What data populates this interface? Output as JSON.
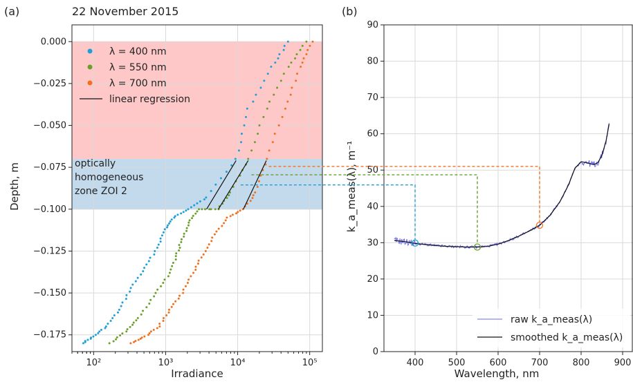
{
  "panel_a": {
    "label": "(a)",
    "title": "22 November 2015",
    "xlabel": "Irradiance",
    "ylabel": "Depth, m",
    "zone_label_lines": [
      "optically",
      "homogeneous",
      "zone ZOI 2"
    ],
    "x_tick_labels": [
      "10²",
      "10³",
      "10⁴",
      "10⁵"
    ],
    "y_tick_labels": [
      "0.000",
      "−0.025",
      "−0.050",
      "−0.075",
      "−0.100",
      "−0.125",
      "−0.150",
      "−0.175"
    ],
    "legend": [
      "λ = 400 nm",
      "λ = 550 nm",
      "λ = 700 nm",
      "linear regression"
    ]
  },
  "panel_b": {
    "label": "(b)",
    "xlabel": "Wavelength, nm",
    "ylabel": "k_a_meas(λ), m⁻¹",
    "x_tick_labels": [
      "400",
      "500",
      "600",
      "700",
      "800",
      "900"
    ],
    "y_tick_labels": [
      "0",
      "10",
      "20",
      "30",
      "40",
      "50",
      "60",
      "70",
      "80",
      "90"
    ],
    "legend": [
      "raw k_a_meas(λ)",
      "smoothed k_a_meas(λ)"
    ]
  },
  "colors": {
    "blue": "#1f9fd8",
    "green": "#6c9e2c",
    "orange": "#f07020",
    "red_zone": "#ffc8c8",
    "blue_zone": "#c3d9ec",
    "raw_line": "#6a6aee",
    "smooth_line": "#111111"
  },
  "chart_data": [
    {
      "type": "scatter",
      "xscale": "log",
      "xlim": [
        50,
        150000
      ],
      "ylim": [
        -0.185,
        0.01
      ],
      "grid": true,
      "legend_position": "top-left",
      "zones": [
        {
          "name": "surface",
          "y": [
            -0.07,
            0.0
          ]
        },
        {
          "name": "optically homogeneous zone ZOI 2",
          "y": [
            -0.1,
            -0.07
          ]
        }
      ],
      "series": [
        {
          "name": "λ = 400 nm",
          "x": [
            70,
            100,
            150,
            230,
            330,
            520,
            760,
            980,
            1300,
            2000,
            3700,
            9500,
            14000,
            30000,
            50000
          ],
          "y": [
            -0.18,
            -0.176,
            -0.17,
            -0.16,
            -0.147,
            -0.135,
            -0.123,
            -0.112,
            -0.105,
            -0.1,
            -0.093,
            -0.07,
            -0.04,
            -0.015,
            0.0
          ]
        },
        {
          "name": "λ = 550 nm",
          "x": [
            170,
            280,
            420,
            680,
            1080,
            1400,
            1700,
            2100,
            2900,
            5400,
            8000,
            14000,
            25000,
            50000,
            90000
          ],
          "y": [
            -0.18,
            -0.173,
            -0.165,
            -0.152,
            -0.14,
            -0.128,
            -0.118,
            -0.108,
            -0.1,
            -0.1,
            -0.09,
            -0.07,
            -0.04,
            -0.015,
            0.0
          ]
        },
        {
          "name": "λ = 700 nm",
          "x": [
            330,
            520,
            800,
            1150,
            1700,
            2400,
            3300,
            4800,
            7200,
            12000,
            18000,
            25000,
            45000,
            75000,
            110000
          ],
          "y": [
            -0.18,
            -0.176,
            -0.17,
            -0.16,
            -0.15,
            -0.138,
            -0.127,
            -0.115,
            -0.105,
            -0.1,
            -0.09,
            -0.07,
            -0.04,
            -0.015,
            0.0
          ]
        }
      ],
      "regressions": [
        {
          "x": [
            3700,
            9500
          ],
          "y": [
            -0.1,
            -0.071
          ]
        },
        {
          "x": [
            5400,
            14000
          ],
          "y": [
            -0.1,
            -0.071
          ]
        },
        {
          "x": [
            12000,
            25000
          ],
          "y": [
            -0.1,
            -0.071
          ]
        }
      ],
      "connectors": [
        {
          "from": {
            "x": 11000,
            "y": -0.0855
          },
          "to_panel_b": {
            "x": 400,
            "y": 47.3
          }
        },
        {
          "from": {
            "x": 15500,
            "y": -0.0795
          },
          "to_panel_b": {
            "x": 550,
            "y": 50.3
          }
        },
        {
          "from": {
            "x": 27000,
            "y": -0.0745
          },
          "to_panel_b": {
            "x": 700,
            "y": 52.6
          }
        }
      ]
    },
    {
      "type": "line",
      "xlim": [
        325,
        925
      ],
      "ylim": [
        0,
        90
      ],
      "grid": true,
      "legend_position": "bottom-right",
      "series": [
        {
          "name": "smoothed k_a_meas(λ)",
          "x": [
            350,
            375,
            400,
            425,
            450,
            475,
            500,
            525,
            550,
            575,
            600,
            625,
            650,
            675,
            700,
            725,
            750,
            770,
            785,
            800,
            815,
            830,
            840,
            850,
            860,
            868
          ],
          "y": [
            30.6,
            30.3,
            29.8,
            29.5,
            29.2,
            29.0,
            28.9,
            28.8,
            28.8,
            29.0,
            29.6,
            30.6,
            31.8,
            33.2,
            34.8,
            37.5,
            41.5,
            46.0,
            50.5,
            52.3,
            52.0,
            51.5,
            52.0,
            54.0,
            58.0,
            63.0
          ]
        }
      ],
      "markers": [
        {
          "x": 400,
          "y": 29.9,
          "color": "blue"
        },
        {
          "x": 550,
          "y": 28.8,
          "color": "green"
        },
        {
          "x": 700,
          "y": 34.8,
          "color": "orange"
        }
      ]
    }
  ]
}
